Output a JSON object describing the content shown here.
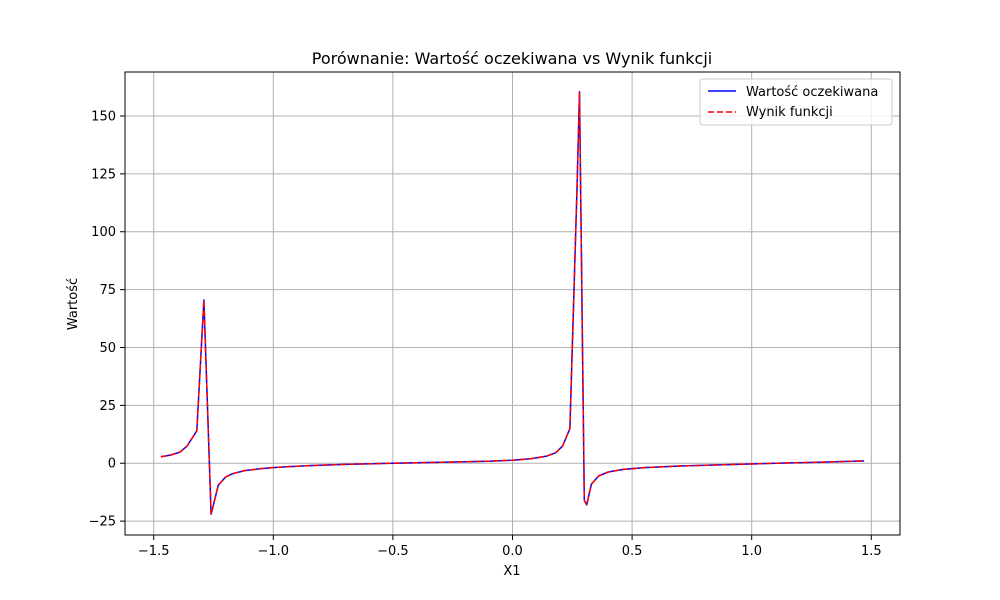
{
  "chart_data": {
    "type": "line",
    "title": "Porównanie: Wartość oczekiwana vs Wynik funkcji",
    "xlabel": "X1",
    "ylabel": "Wartość",
    "xlim": [
      -1.62,
      1.62
    ],
    "ylim": [
      -31,
      169
    ],
    "xticks": [
      -1.5,
      -1.0,
      -0.5,
      0.0,
      0.5,
      1.0,
      1.5
    ],
    "xtick_labels": [
      "−1.5",
      "−1.0",
      "−0.5",
      "0.0",
      "0.5",
      "1.0",
      "1.5"
    ],
    "yticks": [
      -25,
      0,
      25,
      50,
      75,
      100,
      125,
      150
    ],
    "ytick_labels": [
      "−25",
      "0",
      "25",
      "50",
      "75",
      "100",
      "125",
      "150"
    ],
    "grid": true,
    "legend_position": "top-right",
    "x": [
      -1.47,
      -1.43,
      -1.39,
      -1.36,
      -1.32,
      -1.29,
      -1.26,
      -1.23,
      -1.2,
      -1.17,
      -1.12,
      -1.05,
      -0.98,
      -0.85,
      -0.7,
      -0.5,
      -0.3,
      -0.1,
      0.0,
      0.08,
      0.14,
      0.18,
      0.21,
      0.24,
      0.27,
      0.28,
      0.3,
      0.31,
      0.33,
      0.36,
      0.4,
      0.46,
      0.55,
      0.7,
      0.9,
      1.1,
      1.3,
      1.47
    ],
    "series": [
      {
        "name": "Wartość oczekiwana",
        "color": "#0000ff",
        "style": "solid",
        "values": [
          2.8,
          3.5,
          4.8,
          7.5,
          14.0,
          70.5,
          -22.0,
          -9.5,
          -6.0,
          -4.5,
          -3.2,
          -2.3,
          -1.7,
          -1.0,
          -0.5,
          0.0,
          0.4,
          0.9,
          1.3,
          2.0,
          3.0,
          4.5,
          7.5,
          15.0,
          120.0,
          160.5,
          -16.0,
          -18.0,
          -9.0,
          -5.5,
          -3.8,
          -2.7,
          -1.9,
          -1.2,
          -0.6,
          0.0,
          0.5,
          1.0
        ]
      },
      {
        "name": "Wynik funkcji",
        "color": "#ff0000",
        "style": "dashed",
        "values": [
          2.8,
          3.5,
          4.8,
          7.5,
          14.0,
          70.5,
          -22.0,
          -9.5,
          -6.0,
          -4.5,
          -3.2,
          -2.3,
          -1.7,
          -1.0,
          -0.5,
          0.0,
          0.4,
          0.9,
          1.3,
          2.0,
          3.0,
          4.5,
          7.5,
          15.0,
          120.0,
          160.5,
          -16.0,
          -18.0,
          -9.0,
          -5.5,
          -3.8,
          -2.7,
          -1.9,
          -1.2,
          -0.6,
          0.0,
          0.5,
          1.0
        ]
      }
    ]
  }
}
